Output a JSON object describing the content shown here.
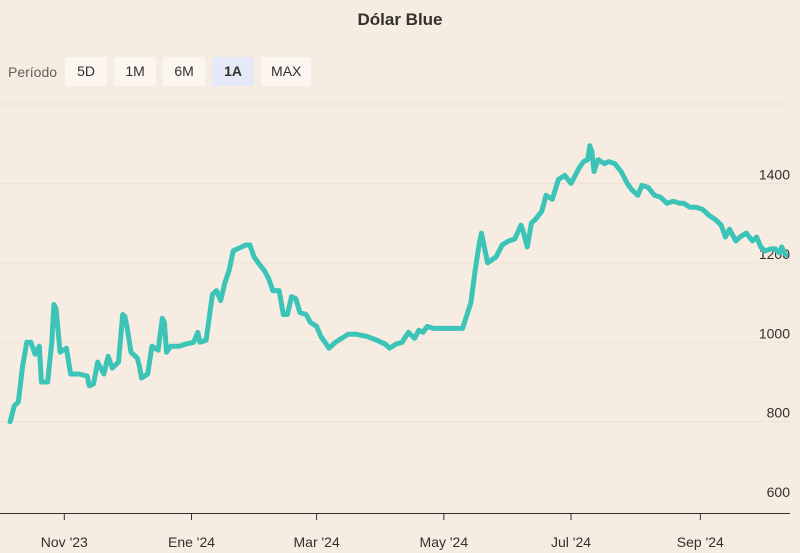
{
  "chart_data": {
    "type": "line",
    "title": "Dólar Blue",
    "xlabel": "",
    "ylabel": "",
    "ylim": [
      570,
      1600
    ],
    "y_ticks": [
      600,
      800,
      1000,
      1200,
      1400
    ],
    "x_ticks": [
      {
        "label": "Nov '23",
        "date": "2023-11-01"
      },
      {
        "label": "Ene '24",
        "date": "2024-01-01"
      },
      {
        "label": "Mar '24",
        "date": "2024-03-01"
      },
      {
        "label": "May '24",
        "date": "2024-05-01"
      },
      {
        "label": "Jul '24",
        "date": "2024-07-01"
      },
      {
        "label": "Sep '24",
        "date": "2024-09-01"
      }
    ],
    "series": [
      {
        "color": "#3cc4b9",
        "points": [
          [
            "2023-10-06",
            800
          ],
          [
            "2023-10-08",
            840
          ],
          [
            "2023-10-10",
            850
          ],
          [
            "2023-10-12",
            940
          ],
          [
            "2023-10-14",
            1000
          ],
          [
            "2023-10-16",
            1000
          ],
          [
            "2023-10-18",
            970
          ],
          [
            "2023-10-20",
            990
          ],
          [
            "2023-10-21",
            900
          ],
          [
            "2023-10-24",
            900
          ],
          [
            "2023-10-26",
            1000
          ],
          [
            "2023-10-27",
            1095
          ],
          [
            "2023-10-28",
            1085
          ],
          [
            "2023-10-30",
            975
          ],
          [
            "2023-11-02",
            985
          ],
          [
            "2023-11-04",
            920
          ],
          [
            "2023-11-08",
            920
          ],
          [
            "2023-11-12",
            915
          ],
          [
            "2023-11-13",
            890
          ],
          [
            "2023-11-15",
            895
          ],
          [
            "2023-11-17",
            950
          ],
          [
            "2023-11-20",
            920
          ],
          [
            "2023-11-22",
            965
          ],
          [
            "2023-11-24",
            935
          ],
          [
            "2023-11-27",
            950
          ],
          [
            "2023-11-29",
            1070
          ],
          [
            "2023-11-30",
            1065
          ],
          [
            "2023-12-01",
            1040
          ],
          [
            "2023-12-03",
            975
          ],
          [
            "2023-12-06",
            960
          ],
          [
            "2023-12-07",
            940
          ],
          [
            "2023-12-08",
            910
          ],
          [
            "2023-12-11",
            920
          ],
          [
            "2023-12-13",
            990
          ],
          [
            "2023-12-16",
            980
          ],
          [
            "2023-12-18",
            1060
          ],
          [
            "2023-12-19",
            1050
          ],
          [
            "2023-12-20",
            975
          ],
          [
            "2023-12-22",
            990
          ],
          [
            "2023-12-26",
            990
          ],
          [
            "2023-12-29",
            995
          ],
          [
            "2024-01-02",
            1000
          ],
          [
            "2024-01-04",
            1025
          ],
          [
            "2024-01-05",
            1000
          ],
          [
            "2024-01-08",
            1005
          ],
          [
            "2024-01-11",
            1120
          ],
          [
            "2024-01-13",
            1130
          ],
          [
            "2024-01-15",
            1105
          ],
          [
            "2024-01-17",
            1150
          ],
          [
            "2024-01-19",
            1180
          ],
          [
            "2024-01-21",
            1230
          ],
          [
            "2024-01-23",
            1235
          ],
          [
            "2024-01-25",
            1240
          ],
          [
            "2024-01-27",
            1245
          ],
          [
            "2024-01-29",
            1245
          ],
          [
            "2024-01-31",
            1215
          ],
          [
            "2024-02-02",
            1200
          ],
          [
            "2024-02-05",
            1180
          ],
          [
            "2024-02-07",
            1160
          ],
          [
            "2024-02-09",
            1130
          ],
          [
            "2024-02-12",
            1130
          ],
          [
            "2024-02-14",
            1070
          ],
          [
            "2024-02-16",
            1070
          ],
          [
            "2024-02-18",
            1115
          ],
          [
            "2024-02-20",
            1110
          ],
          [
            "2024-02-22",
            1075
          ],
          [
            "2024-02-25",
            1070
          ],
          [
            "2024-02-27",
            1050
          ],
          [
            "2024-03-01",
            1040
          ],
          [
            "2024-03-03",
            1015
          ],
          [
            "2024-03-05",
            1000
          ],
          [
            "2024-03-07",
            985
          ],
          [
            "2024-03-10",
            1000
          ],
          [
            "2024-03-13",
            1010
          ],
          [
            "2024-03-16",
            1020
          ],
          [
            "2024-03-20",
            1020
          ],
          [
            "2024-03-25",
            1015
          ],
          [
            "2024-03-30",
            1005
          ],
          [
            "2024-04-03",
            995
          ],
          [
            "2024-04-05",
            985
          ],
          [
            "2024-04-08",
            995
          ],
          [
            "2024-04-11",
            1000
          ],
          [
            "2024-04-14",
            1025
          ],
          [
            "2024-04-17",
            1010
          ],
          [
            "2024-04-19",
            1030
          ],
          [
            "2024-04-21",
            1025
          ],
          [
            "2024-04-23",
            1040
          ],
          [
            "2024-04-26",
            1035
          ],
          [
            "2024-04-30",
            1035
          ],
          [
            "2024-05-05",
            1035
          ],
          [
            "2024-05-10",
            1035
          ],
          [
            "2024-05-14",
            1100
          ],
          [
            "2024-05-16",
            1180
          ],
          [
            "2024-05-18",
            1250
          ],
          [
            "2024-05-19",
            1275
          ],
          [
            "2024-05-20",
            1250
          ],
          [
            "2024-05-22",
            1200
          ],
          [
            "2024-05-26",
            1215
          ],
          [
            "2024-05-29",
            1245
          ],
          [
            "2024-06-01",
            1255
          ],
          [
            "2024-06-04",
            1260
          ],
          [
            "2024-06-07",
            1295
          ],
          [
            "2024-06-08",
            1280
          ],
          [
            "2024-06-10",
            1240
          ],
          [
            "2024-06-12",
            1300
          ],
          [
            "2024-06-14",
            1310
          ],
          [
            "2024-06-17",
            1330
          ],
          [
            "2024-06-19",
            1370
          ],
          [
            "2024-06-22",
            1360
          ],
          [
            "2024-06-25",
            1410
          ],
          [
            "2024-06-28",
            1420
          ],
          [
            "2024-07-01",
            1400
          ],
          [
            "2024-07-03",
            1420
          ],
          [
            "2024-07-05",
            1440
          ],
          [
            "2024-07-07",
            1455
          ],
          [
            "2024-07-09",
            1460
          ],
          [
            "2024-07-10",
            1495
          ],
          [
            "2024-07-11",
            1480
          ],
          [
            "2024-07-12",
            1430
          ],
          [
            "2024-07-14",
            1460
          ],
          [
            "2024-07-17",
            1450
          ],
          [
            "2024-07-19",
            1455
          ],
          [
            "2024-07-22",
            1450
          ],
          [
            "2024-07-25",
            1430
          ],
          [
            "2024-07-28",
            1400
          ],
          [
            "2024-07-30",
            1385
          ],
          [
            "2024-08-02",
            1370
          ],
          [
            "2024-08-04",
            1395
          ],
          [
            "2024-08-07",
            1390
          ],
          [
            "2024-08-10",
            1370
          ],
          [
            "2024-08-13",
            1365
          ],
          [
            "2024-08-16",
            1350
          ],
          [
            "2024-08-19",
            1355
          ],
          [
            "2024-08-22",
            1350
          ],
          [
            "2024-08-24",
            1350
          ],
          [
            "2024-08-27",
            1340
          ],
          [
            "2024-08-30",
            1340
          ],
          [
            "2024-09-02",
            1335
          ],
          [
            "2024-09-05",
            1320
          ],
          [
            "2024-09-08",
            1310
          ],
          [
            "2024-09-11",
            1295
          ],
          [
            "2024-09-13",
            1265
          ],
          [
            "2024-09-15",
            1285
          ],
          [
            "2024-09-18",
            1255
          ],
          [
            "2024-09-20",
            1265
          ],
          [
            "2024-09-23",
            1275
          ],
          [
            "2024-09-26",
            1255
          ],
          [
            "2024-09-28",
            1265
          ],
          [
            "2024-09-30",
            1240
          ],
          [
            "2024-10-02",
            1230
          ],
          [
            "2024-10-05",
            1235
          ],
          [
            "2024-10-07",
            1235
          ],
          [
            "2024-10-09",
            1225
          ],
          [
            "2024-10-10",
            1240
          ],
          [
            "2024-10-12",
            1220
          ]
        ]
      }
    ],
    "grid": true,
    "legend": "none"
  },
  "controls": {
    "period_label": "Período",
    "periods": [
      "5D",
      "1M",
      "6M",
      "1A",
      "MAX"
    ],
    "active_period": "1A"
  }
}
